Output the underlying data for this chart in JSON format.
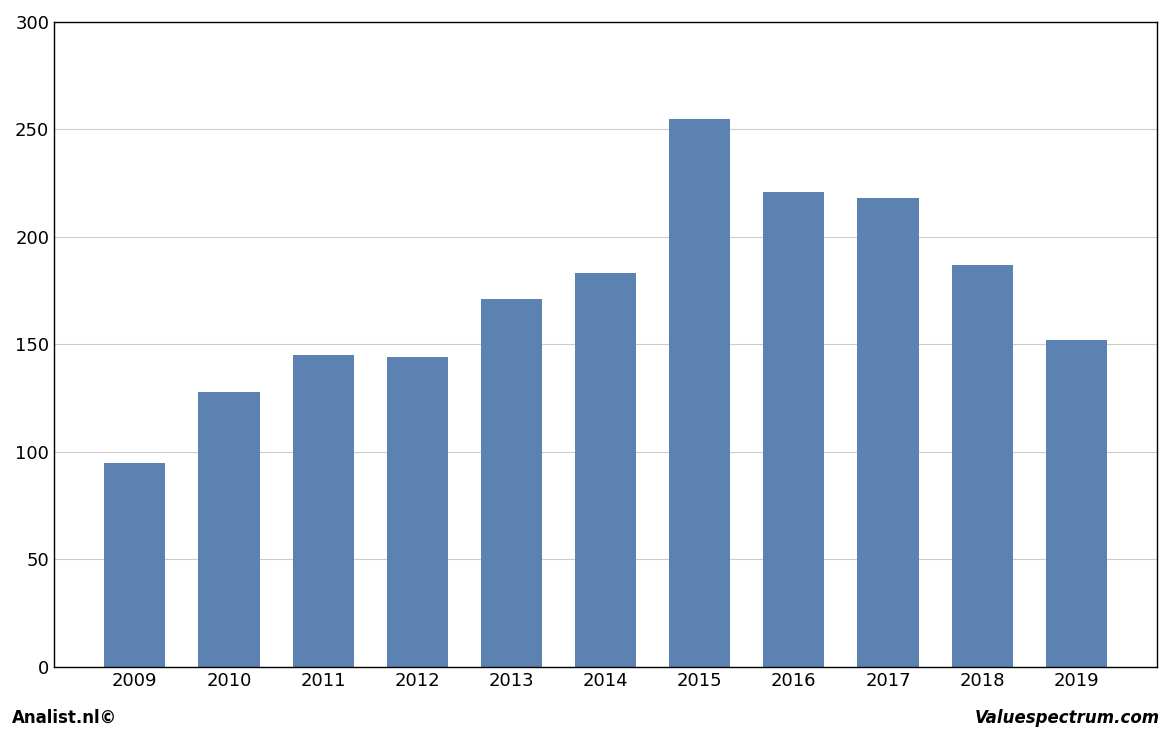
{
  "years": [
    "2009",
    "2010",
    "2011",
    "2012",
    "2013",
    "2014",
    "2015",
    "2016",
    "2017",
    "2018",
    "2019"
  ],
  "values": [
    95,
    128,
    145,
    144,
    171,
    183,
    255,
    221,
    218,
    187,
    152
  ],
  "bar_color": "#5b82b0",
  "background_color": "#ffffff",
  "plot_background_color": "#ffffff",
  "ylim": [
    0,
    300
  ],
  "yticks": [
    0,
    50,
    100,
    150,
    200,
    250,
    300
  ],
  "grid_color": "#cccccc",
  "footer_left": "Analist.nl©",
  "footer_right": "Valuespectrum.com",
  "border_color": "#000000"
}
